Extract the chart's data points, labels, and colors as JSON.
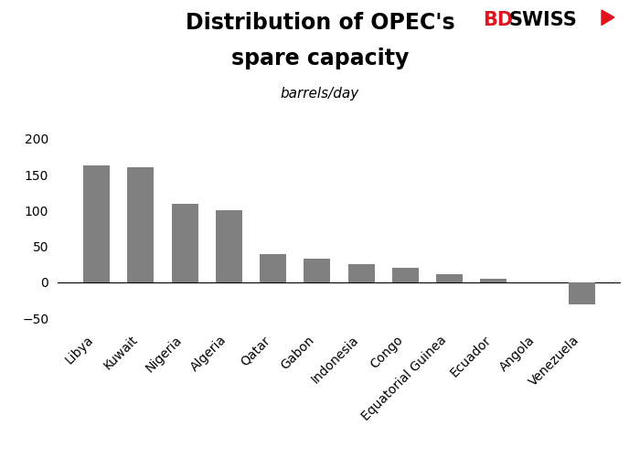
{
  "title_line1": "Distribution of OPEC's",
  "title_line2": "spare capacity",
  "subtitle": "barrels/day",
  "categories": [
    "Libya",
    "Kuwait",
    "Nigeria",
    "Algeria",
    "Qatar",
    "Gabon",
    "Indonesia",
    "Congo",
    "Equatorial Guinea",
    "Ecuador",
    "Angola",
    "Venezuela"
  ],
  "values": [
    163,
    160,
    110,
    100,
    40,
    33,
    25,
    20,
    12,
    5,
    0,
    -30
  ],
  "bar_color": "#808080",
  "ylim": [
    -65,
    215
  ],
  "yticks": [
    -50,
    0,
    50,
    100,
    150,
    200
  ],
  "background_color": "#ffffff",
  "title_fontsize": 17,
  "subtitle_fontsize": 11,
  "tick_fontsize": 10,
  "logo_red": "#e0141e",
  "logo_black": "#000000"
}
